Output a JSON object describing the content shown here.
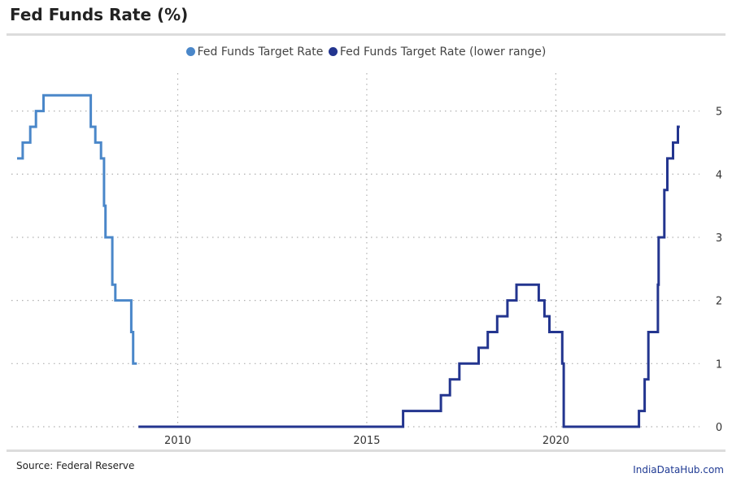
{
  "title": "Fed Funds Rate (%)",
  "source": "Source: Federal Reserve",
  "brand": "IndiaDataHub.com",
  "chart_data": {
    "type": "line",
    "step": true,
    "x_axis_label": "",
    "y_axis_label": "",
    "xlim": [
      2005.6,
      2023.8
    ],
    "ylim": [
      0,
      5.6
    ],
    "x_ticks": [
      2010,
      2015,
      2020
    ],
    "y_ticks": [
      0,
      1,
      2,
      3,
      4,
      5
    ],
    "y_axis_position": "right",
    "grid": "dotted",
    "legend_position": "top-center",
    "series": [
      {
        "name": "Fed Funds Target Rate",
        "color": "#4a87c9",
        "points": [
          [
            2005.75,
            4.25
          ],
          [
            2005.9,
            4.5
          ],
          [
            2006.1,
            4.75
          ],
          [
            2006.25,
            5.0
          ],
          [
            2006.45,
            5.25
          ],
          [
            2007.7,
            4.75
          ],
          [
            2007.82,
            4.5
          ],
          [
            2007.97,
            4.25
          ],
          [
            2008.05,
            3.5
          ],
          [
            2008.09,
            3.0
          ],
          [
            2008.27,
            2.25
          ],
          [
            2008.35,
            2.0
          ],
          [
            2008.77,
            1.5
          ],
          [
            2008.82,
            1.0
          ],
          [
            2008.92,
            1.0
          ]
        ]
      },
      {
        "name": "Fed Funds Target Rate (lower range)",
        "color": "#23358f",
        "points": [
          [
            2008.96,
            0.0
          ],
          [
            2015.96,
            0.25
          ],
          [
            2016.96,
            0.5
          ],
          [
            2017.2,
            0.75
          ],
          [
            2017.45,
            1.0
          ],
          [
            2017.96,
            1.25
          ],
          [
            2018.2,
            1.5
          ],
          [
            2018.45,
            1.75
          ],
          [
            2018.72,
            2.0
          ],
          [
            2018.96,
            2.25
          ],
          [
            2019.55,
            2.0
          ],
          [
            2019.7,
            1.75
          ],
          [
            2019.83,
            1.5
          ],
          [
            2020.17,
            1.0
          ],
          [
            2020.21,
            0.0
          ],
          [
            2022.2,
            0.25
          ],
          [
            2022.35,
            0.75
          ],
          [
            2022.45,
            1.5
          ],
          [
            2022.7,
            2.25
          ],
          [
            2022.72,
            3.0
          ],
          [
            2022.87,
            3.75
          ],
          [
            2022.95,
            4.25
          ],
          [
            2023.1,
            4.5
          ],
          [
            2023.23,
            4.75
          ],
          [
            2023.28,
            4.75
          ]
        ]
      }
    ]
  }
}
